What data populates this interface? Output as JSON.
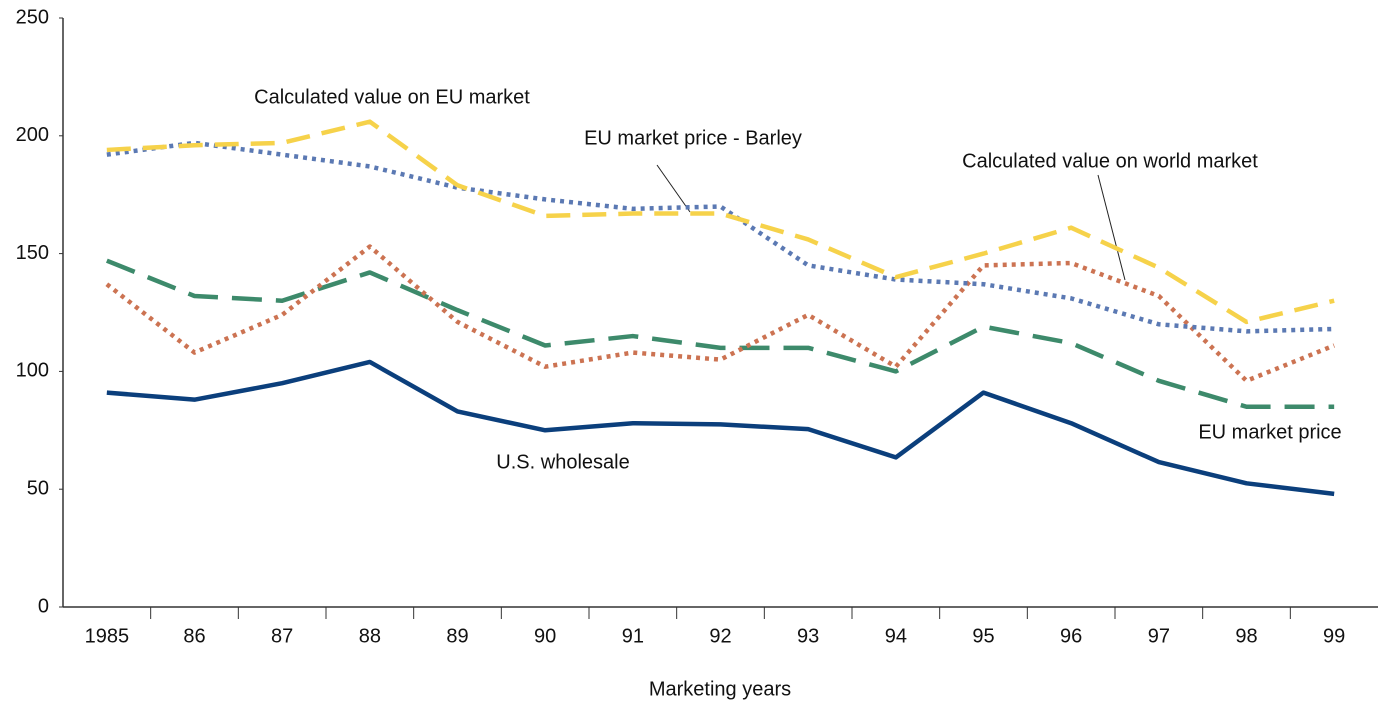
{
  "chart_data": {
    "type": "line",
    "x_label": "Marketing years",
    "categories": [
      "1985",
      "86",
      "87",
      "88",
      "89",
      "90",
      "91",
      "92",
      "93",
      "94",
      "95",
      "96",
      "97",
      "98",
      "99"
    ],
    "ylim": [
      0,
      250
    ],
    "yticks": [
      0,
      50,
      100,
      150,
      200,
      250
    ],
    "series": [
      {
        "name": "U.S. wholesale",
        "color": "#0b3f7c",
        "style": "solid",
        "values": [
          91,
          88,
          95,
          104,
          83,
          75,
          78,
          77.5,
          75.5,
          63.5,
          91,
          78,
          61.5,
          52.5,
          48
        ]
      },
      {
        "name": "EU market price",
        "color": "#3d8a6b",
        "style": "longdash",
        "values": [
          147,
          132,
          130,
          142,
          126,
          111,
          115,
          110,
          110,
          100,
          119,
          112,
          96,
          85,
          85
        ]
      },
      {
        "name": "Calculated value on world market",
        "color": "#cc7352",
        "style": "dotted",
        "values": [
          137,
          108,
          124,
          153,
          121,
          102,
          108,
          105,
          124,
          102,
          145,
          146,
          132,
          96,
          111
        ]
      },
      {
        "name": "EU market price - Barley",
        "color": "#5b79b3",
        "style": "dotted",
        "values": [
          192,
          197,
          192,
          187,
          178,
          173,
          169,
          170,
          145,
          139,
          137,
          131,
          120,
          117,
          118
        ]
      },
      {
        "name": "Calculated value on EU market",
        "color": "#f6d24a",
        "style": "dashed",
        "values": [
          194,
          196,
          197,
          206,
          179,
          166,
          167,
          167,
          156,
          140,
          150,
          161,
          144,
          121,
          130
        ]
      }
    ]
  }
}
